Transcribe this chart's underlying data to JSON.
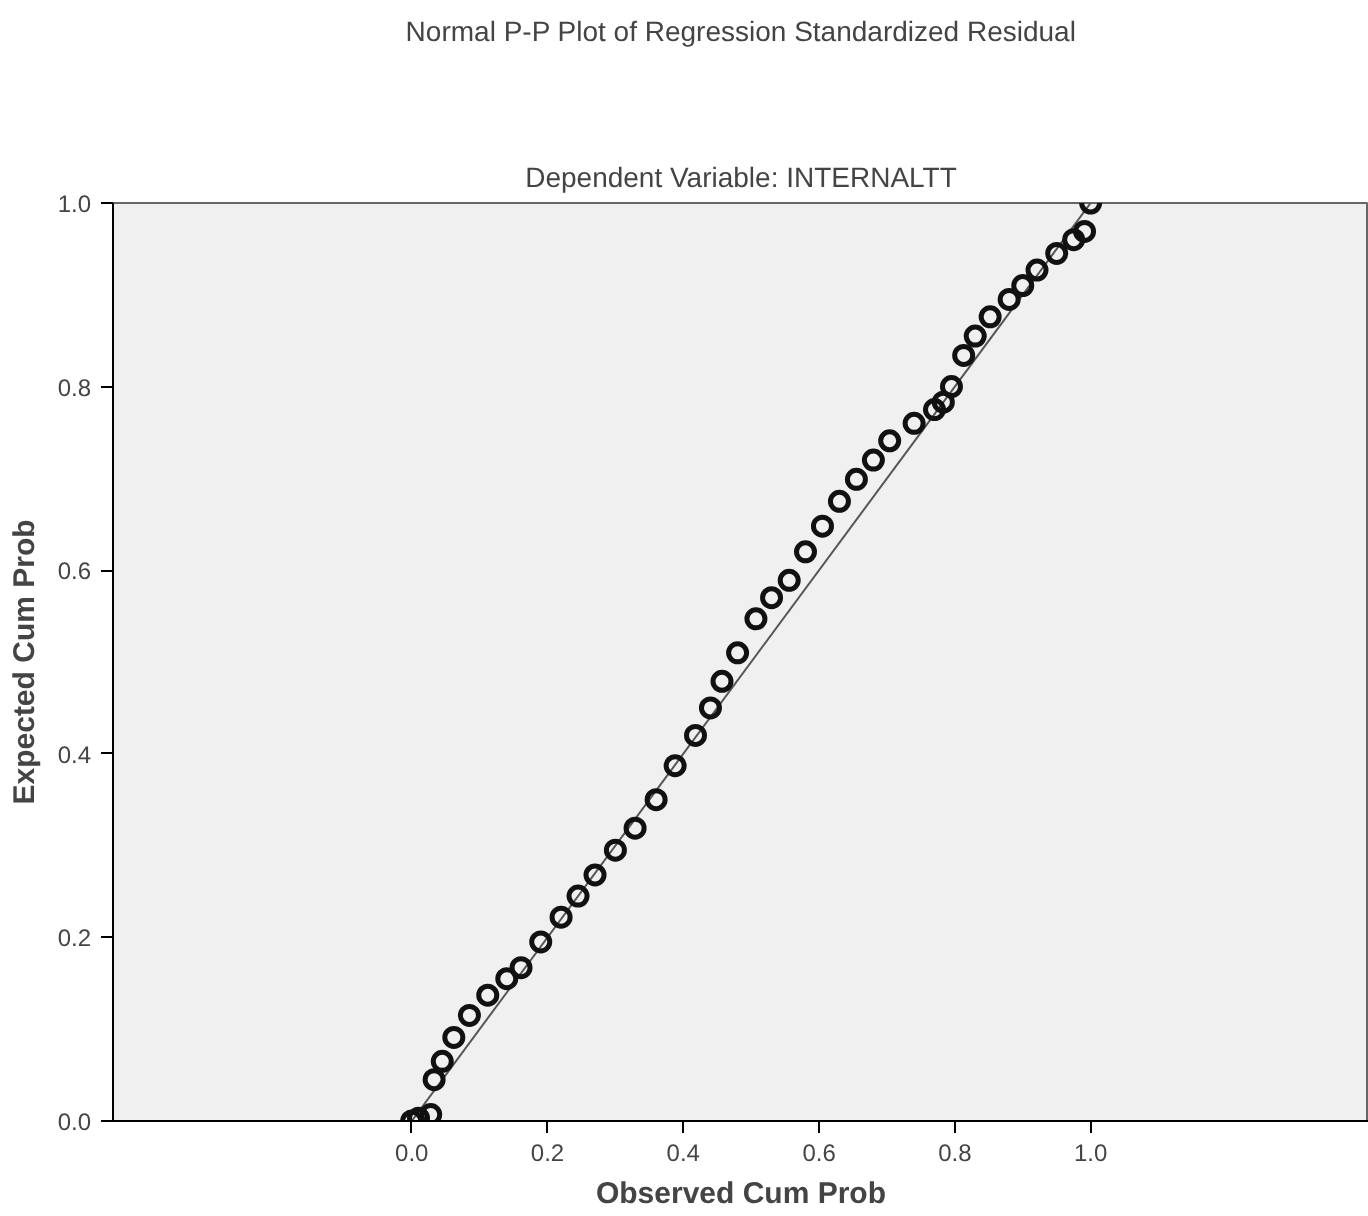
{
  "chart_data": {
    "type": "scatter",
    "title": "Normal P-P Plot of Regression Standardized Residual",
    "subtitle": "Dependent Variable: INTERNALTT",
    "xlabel": "Observed Cum Prob",
    "ylabel": "Expected Cum Prob",
    "xlim": [
      -0.44,
      1.41
    ],
    "ylim": [
      0,
      1
    ],
    "xticks": [
      {
        "value": 0,
        "label": "0.0"
      },
      0.2,
      0.4,
      0.6,
      0.8,
      {
        "value": 1,
        "label": "1.0"
      }
    ],
    "yticks": [
      {
        "value": 0,
        "label": "0.0"
      },
      0.2,
      0.4,
      0.6,
      0.8,
      {
        "value": 1,
        "label": "1.0"
      }
    ],
    "grid": false,
    "series": [
      {
        "type": "line",
        "marker": "none",
        "color": "#555555",
        "x": [
          0,
          1
        ],
        "values": [
          0,
          1
        ]
      },
      {
        "marker": "circle",
        "color": "#111111",
        "x": [
          0.0,
          0.01,
          0.028,
          0.033,
          0.045,
          0.062,
          0.085,
          0.112,
          0.14,
          0.161,
          0.19,
          0.22,
          0.245,
          0.27,
          0.3,
          0.329,
          0.36,
          0.388,
          0.418,
          0.44,
          0.457,
          0.48,
          0.507,
          0.53,
          0.556,
          0.58,
          0.605,
          0.63,
          0.655,
          0.68,
          0.704,
          0.74,
          0.77,
          0.783,
          0.795,
          0.813,
          0.83,
          0.852,
          0.88,
          0.9,
          0.921,
          0.95,
          0.975,
          0.991,
          1.0
        ],
        "values": [
          0.0,
          0.003,
          0.007,
          0.045,
          0.065,
          0.091,
          0.115,
          0.137,
          0.155,
          0.167,
          0.195,
          0.222,
          0.245,
          0.268,
          0.295,
          0.319,
          0.35,
          0.387,
          0.42,
          0.45,
          0.479,
          0.51,
          0.547,
          0.57,
          0.589,
          0.62,
          0.648,
          0.675,
          0.699,
          0.72,
          0.741,
          0.76,
          0.775,
          0.783,
          0.8,
          0.834,
          0.855,
          0.876,
          0.895,
          0.91,
          0.927,
          0.945,
          0.96,
          0.969,
          1.0
        ]
      }
    ]
  }
}
